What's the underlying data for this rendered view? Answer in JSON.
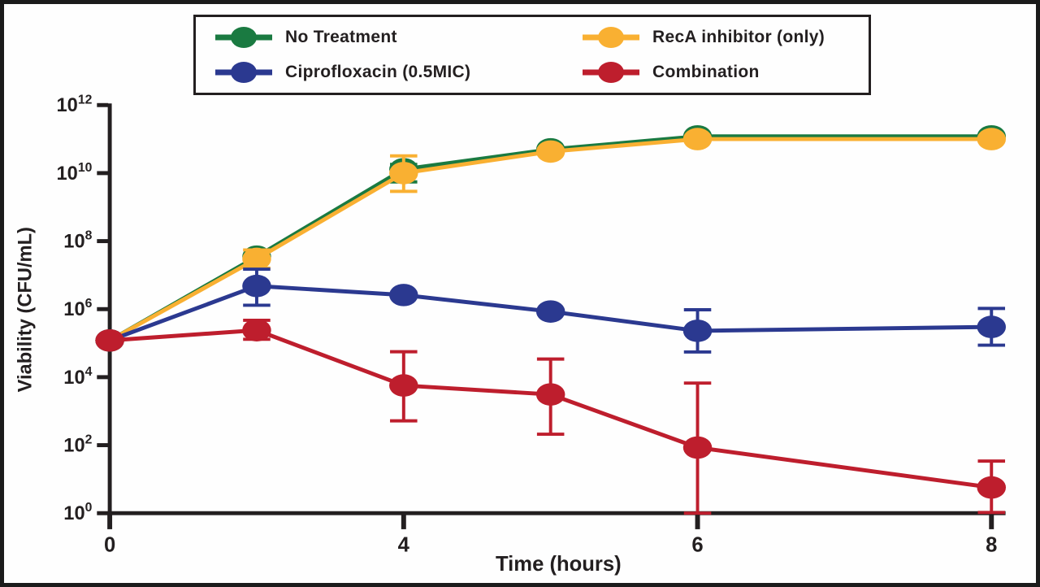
{
  "figure": {
    "background": "#fefefe",
    "border_color": "#1b1b1b",
    "text_color": "#231f20"
  },
  "chart_data": {
    "type": "line",
    "title": "",
    "xlabel": "Time (hours)",
    "ylabel": "Viability (CFU/mL)",
    "y_scale": "log10",
    "y_tick_base": "10",
    "ytick_exponents": [
      12,
      10,
      8,
      6,
      4,
      2,
      0
    ],
    "ylim_exponents": [
      0,
      12
    ],
    "xtick_labels": [
      "0",
      "4",
      "6",
      "8"
    ],
    "xticks": [
      0,
      4,
      6,
      8
    ],
    "x": [
      0,
      2,
      4,
      5,
      6,
      8
    ],
    "grid": false,
    "legend_position": "top-center",
    "series": [
      {
        "name": "No Treatment",
        "color": "#1a7a41",
        "values": [
          120000.0,
          35000000.0,
          13000000000.0,
          50000000000.0,
          120000000000.0,
          120000000000.0
        ],
        "err_lo": [
          null,
          null,
          5500000000.0,
          null,
          null,
          null
        ],
        "err_hi": [
          null,
          null,
          18000000000.0,
          null,
          null,
          null
        ]
      },
      {
        "name": "RecA inhibitor (only)",
        "color": "#f9b032",
        "values": [
          120000.0,
          30000000.0,
          10000000000.0,
          43000000000.0,
          100000000000.0,
          100000000000.0
        ],
        "err_lo": [
          null,
          16000000.0,
          2900000000.0,
          null,
          null,
          null
        ],
        "err_hi": [
          null,
          55000000.0,
          32000000000.0,
          null,
          null,
          null
        ]
      },
      {
        "name": "Ciprofloxacin (0.5MIC)",
        "color": "#2b3990",
        "values": [
          120000.0,
          4800000.0,
          2600000.0,
          850000.0,
          230000.0,
          300000.0
        ],
        "err_lo": [
          null,
          1300000.0,
          null,
          null,
          55000.0,
          87000.0
        ],
        "err_hi": [
          null,
          15000000.0,
          null,
          null,
          960000.0,
          1050000.0
        ]
      },
      {
        "name": "Combination",
        "color": "#be1e2d",
        "values": [
          120000.0,
          240000.0,
          5700.0,
          3100.0,
          85.0,
          5.7
        ],
        "err_lo": [
          null,
          130000.0,
          520.0,
          210.0,
          1.0,
          1.05
        ],
        "err_hi": [
          null,
          470000.0,
          56000.0,
          34000.0,
          6700.0,
          34.0
        ]
      }
    ]
  }
}
